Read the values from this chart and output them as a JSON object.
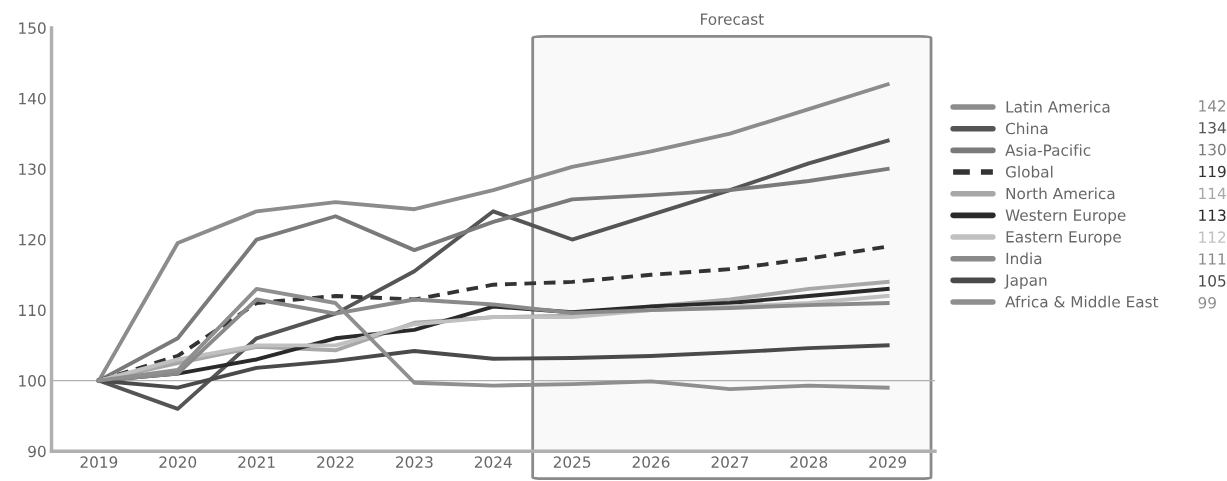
{
  "chart_data": {
    "type": "line",
    "x": [
      2019,
      2020,
      2021,
      2022,
      2023,
      2024,
      2025,
      2026,
      2027,
      2028,
      2029
    ],
    "xlim": [
      2018.4,
      2029.6
    ],
    "xticks": [
      2019,
      2020,
      2021,
      2022,
      2023,
      2024,
      2025,
      2026,
      2027,
      2028,
      2029
    ],
    "ylim": [
      90,
      150
    ],
    "yticks": [
      90,
      100,
      110,
      120,
      130,
      140,
      150
    ],
    "grid": false,
    "legend": "right",
    "line_style": "solid",
    "marker": "none",
    "ref_lines": [
      {
        "axis": "y",
        "value": 100,
        "color": "#b0b0b0"
      }
    ],
    "bands": [
      {
        "axis": "x",
        "from": 2024.5,
        "to": 2029.55,
        "label": "Forecast",
        "color": "#8a8a8a"
      }
    ],
    "annotations": [
      "142",
      "134",
      "130",
      "119",
      "114",
      "113",
      "112",
      "111",
      "105",
      "99"
    ],
    "series": [
      {
        "name": "Latin America",
        "color": "#8c8c8c",
        "values": [
          100,
          119.5,
          124,
          125.3,
          124.3,
          127,
          130.3,
          132.5,
          135,
          138.5,
          142
        ]
      },
      {
        "name": "China",
        "color": "#555555",
        "values": [
          100,
          96,
          106,
          109.5,
          115.5,
          124,
          120,
          123.5,
          127,
          130.8,
          134
        ]
      },
      {
        "name": "Asia-Pacific",
        "color": "#7a7a7a",
        "values": [
          100,
          106,
          120,
          123.3,
          118.5,
          122.5,
          125.7,
          126.3,
          127,
          128.3,
          130
        ]
      },
      {
        "name": "Global",
        "color": "#333333",
        "line_style": "dashed",
        "values": [
          100,
          103.5,
          111,
          112,
          111.5,
          113.6,
          114,
          115,
          115.8,
          117.3,
          119
        ]
      },
      {
        "name": "North America",
        "color": "#a8a8a8",
        "values": [
          100,
          102.5,
          104.8,
          104.3,
          108.2,
          109,
          109.2,
          110.5,
          111.5,
          113,
          114
        ]
      },
      {
        "name": "Western Europe",
        "color": "#2a2a2a",
        "values": [
          100,
          101,
          103,
          106,
          107.2,
          110.5,
          109.7,
          110.5,
          111,
          112,
          113
        ]
      },
      {
        "name": "Eastern Europe",
        "color": "#c0c0c0",
        "values": [
          100,
          103,
          105,
          105,
          108,
          109,
          109,
          110,
          110.5,
          111,
          112
        ]
      },
      {
        "name": "India",
        "color": "#8a8a8a",
        "values": [
          100,
          101,
          111.5,
          109.5,
          111.5,
          110.8,
          109.6,
          110,
          110.3,
          110.7,
          111
        ]
      },
      {
        "name": "Japan",
        "color": "#4a4a4a",
        "values": [
          100,
          99,
          101.8,
          102.8,
          104.2,
          103.1,
          103.2,
          103.5,
          104,
          104.6,
          105
        ]
      },
      {
        "name": "Africa & Middle East",
        "color": "#8f8f8f",
        "values": [
          100,
          101.5,
          113,
          111,
          99.7,
          99.3,
          99.5,
          99.9,
          98.8,
          99.3,
          99
        ]
      }
    ]
  }
}
